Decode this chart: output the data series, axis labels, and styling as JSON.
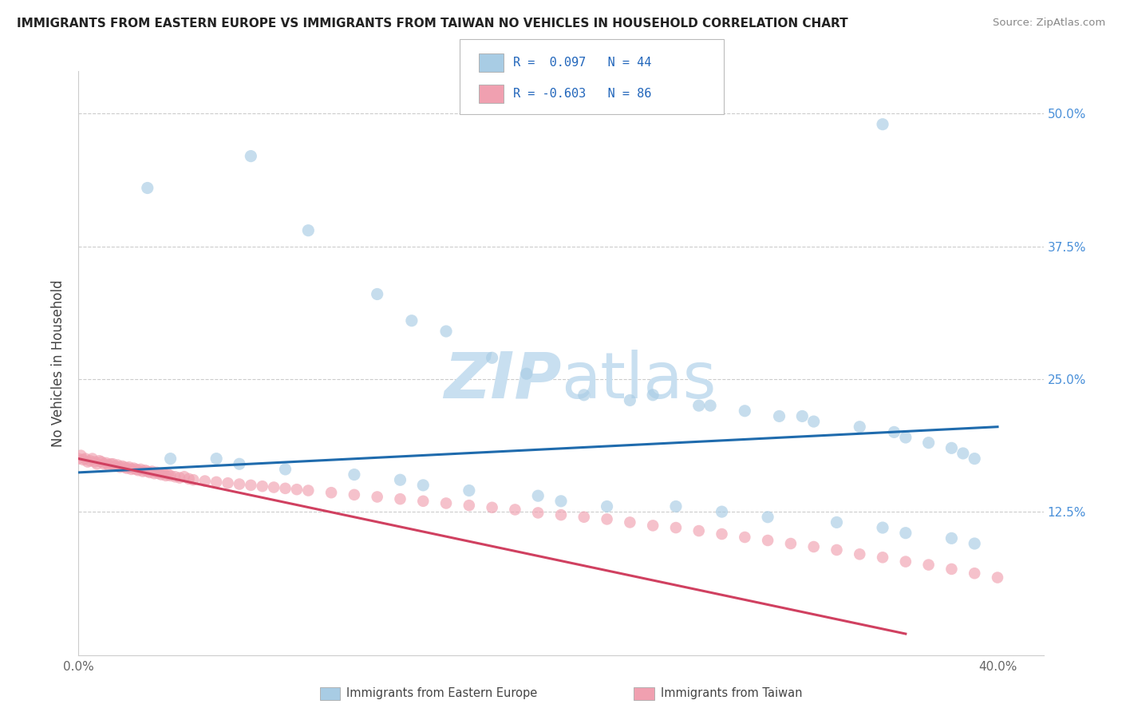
{
  "title": "IMMIGRANTS FROM EASTERN EUROPE VS IMMIGRANTS FROM TAIWAN NO VEHICLES IN HOUSEHOLD CORRELATION CHART",
  "source": "Source: ZipAtlas.com",
  "ylabel": "No Vehicles in Household",
  "xlim": [
    0.0,
    0.42
  ],
  "ylim": [
    -0.01,
    0.54
  ],
  "color_blue": "#a8cce4",
  "color_blue_line": "#1f6bad",
  "color_pink": "#f0a0b0",
  "color_pink_line": "#d04060",
  "watermark_color": "#c8dff0",
  "background_color": "#ffffff",
  "grid_color": "#cccccc",
  "blue_scatter_x": [
    0.03,
    0.075,
    0.1,
    0.13,
    0.145,
    0.16,
    0.18,
    0.195,
    0.22,
    0.24,
    0.25,
    0.27,
    0.275,
    0.29,
    0.305,
    0.315,
    0.32,
    0.34,
    0.355,
    0.36,
    0.37,
    0.38,
    0.385,
    0.39,
    0.04,
    0.06,
    0.07,
    0.09,
    0.12,
    0.14,
    0.15,
    0.17,
    0.2,
    0.21,
    0.23,
    0.26,
    0.28,
    0.3,
    0.33,
    0.35,
    0.36,
    0.38,
    0.39,
    0.35
  ],
  "blue_scatter_y": [
    0.43,
    0.46,
    0.39,
    0.33,
    0.305,
    0.295,
    0.27,
    0.255,
    0.235,
    0.23,
    0.235,
    0.225,
    0.225,
    0.22,
    0.215,
    0.215,
    0.21,
    0.205,
    0.2,
    0.195,
    0.19,
    0.185,
    0.18,
    0.175,
    0.175,
    0.175,
    0.17,
    0.165,
    0.16,
    0.155,
    0.15,
    0.145,
    0.14,
    0.135,
    0.13,
    0.13,
    0.125,
    0.12,
    0.115,
    0.11,
    0.105,
    0.1,
    0.095,
    0.49
  ],
  "pink_scatter_x": [
    0.0,
    0.001,
    0.002,
    0.003,
    0.004,
    0.005,
    0.006,
    0.007,
    0.008,
    0.009,
    0.01,
    0.011,
    0.012,
    0.013,
    0.014,
    0.015,
    0.016,
    0.017,
    0.018,
    0.019,
    0.02,
    0.021,
    0.022,
    0.023,
    0.024,
    0.025,
    0.026,
    0.027,
    0.028,
    0.029,
    0.03,
    0.031,
    0.032,
    0.033,
    0.034,
    0.035,
    0.036,
    0.037,
    0.038,
    0.039,
    0.04,
    0.042,
    0.044,
    0.046,
    0.048,
    0.05,
    0.055,
    0.06,
    0.065,
    0.07,
    0.075,
    0.08,
    0.085,
    0.09,
    0.095,
    0.1,
    0.11,
    0.12,
    0.13,
    0.14,
    0.15,
    0.16,
    0.17,
    0.18,
    0.19,
    0.2,
    0.21,
    0.22,
    0.23,
    0.24,
    0.25,
    0.26,
    0.27,
    0.28,
    0.29,
    0.3,
    0.31,
    0.32,
    0.33,
    0.34,
    0.35,
    0.36,
    0.37,
    0.38,
    0.39,
    0.4
  ],
  "pink_scatter_y": [
    0.175,
    0.178,
    0.174,
    0.175,
    0.172,
    0.173,
    0.175,
    0.172,
    0.17,
    0.173,
    0.172,
    0.17,
    0.171,
    0.169,
    0.17,
    0.17,
    0.168,
    0.169,
    0.167,
    0.168,
    0.167,
    0.166,
    0.167,
    0.165,
    0.166,
    0.165,
    0.164,
    0.165,
    0.163,
    0.164,
    0.163,
    0.162,
    0.163,
    0.161,
    0.162,
    0.161,
    0.16,
    0.161,
    0.159,
    0.16,
    0.159,
    0.158,
    0.157,
    0.158,
    0.156,
    0.155,
    0.154,
    0.153,
    0.152,
    0.151,
    0.15,
    0.149,
    0.148,
    0.147,
    0.146,
    0.145,
    0.143,
    0.141,
    0.139,
    0.137,
    0.135,
    0.133,
    0.131,
    0.129,
    0.127,
    0.124,
    0.122,
    0.12,
    0.118,
    0.115,
    0.112,
    0.11,
    0.107,
    0.104,
    0.101,
    0.098,
    0.095,
    0.092,
    0.089,
    0.085,
    0.082,
    0.078,
    0.075,
    0.071,
    0.067,
    0.063
  ]
}
